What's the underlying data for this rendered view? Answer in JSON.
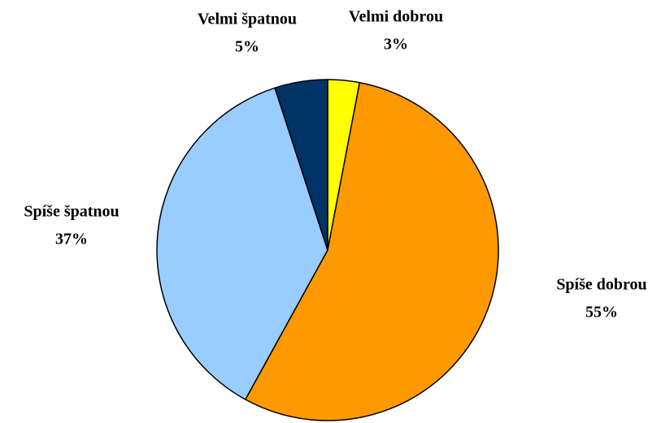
{
  "chart_data": {
    "type": "pie",
    "categories": [
      "Velmi dobrou",
      "Spíše dobrou",
      "Spíše špatnou",
      "Velmi špatnou"
    ],
    "values": [
      3,
      55,
      37,
      5
    ],
    "value_labels": [
      "3%",
      "55%",
      "37%",
      "5%"
    ],
    "colors": [
      "#ffff00",
      "#ff9900",
      "#99ccff",
      "#003366"
    ],
    "start_angle": 0,
    "direction": "clockwise"
  }
}
